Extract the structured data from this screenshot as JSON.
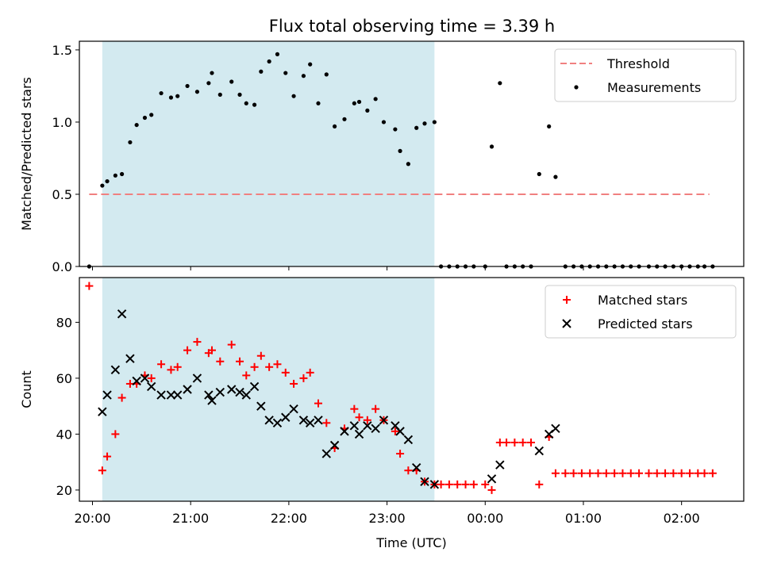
{
  "figure": {
    "title": "Flux total observing time = 3.39 h"
  },
  "chart_data": [
    {
      "type": "scatter",
      "panel": "top",
      "title": "Flux total observing time = 3.39 h",
      "xlabel": "",
      "ylabel": "Matched/Predicted stars",
      "xlim": [
        "19:52",
        "02:38"
      ],
      "ylim": [
        0.0,
        1.56
      ],
      "yticks": [
        0.0,
        0.5,
        1.0,
        1.5
      ],
      "ytick_labels": [
        "0.0",
        "0.5",
        "1.0",
        "1.5"
      ],
      "xticks": [
        "20:00",
        "21:00",
        "22:00",
        "23:00",
        "00:00",
        "01:00",
        "02:00"
      ],
      "shaded_span": [
        "20:06",
        "23:29"
      ],
      "shade_color": "#d3eaf0",
      "legend": {
        "position": "top-right",
        "entries": [
          "Threshold",
          "Measurements"
        ]
      },
      "threshold": {
        "name": "Threshold",
        "value": 0.5,
        "x_range": [
          "19:58",
          "02:17"
        ],
        "color": "#f08080",
        "style": "dashed"
      },
      "series": [
        {
          "name": "Measurements",
          "marker": "dot",
          "color": "#000000",
          "points": [
            [
              "19:58",
              0.0
            ],
            [
              "20:06",
              0.56
            ],
            [
              "20:09",
              0.59
            ],
            [
              "20:14",
              0.63
            ],
            [
              "20:18",
              0.64
            ],
            [
              "20:23",
              0.86
            ],
            [
              "20:27",
              0.98
            ],
            [
              "20:32",
              1.03
            ],
            [
              "20:36",
              1.05
            ],
            [
              "20:42",
              1.2
            ],
            [
              "20:48",
              1.17
            ],
            [
              "20:52",
              1.18
            ],
            [
              "20:58",
              1.25
            ],
            [
              "21:04",
              1.21
            ],
            [
              "21:11",
              1.27
            ],
            [
              "21:13",
              1.34
            ],
            [
              "21:18",
              1.19
            ],
            [
              "21:25",
              1.28
            ],
            [
              "21:30",
              1.19
            ],
            [
              "21:34",
              1.13
            ],
            [
              "21:39",
              1.12
            ],
            [
              "21:43",
              1.35
            ],
            [
              "21:48",
              1.42
            ],
            [
              "21:53",
              1.47
            ],
            [
              "21:58",
              1.34
            ],
            [
              "22:03",
              1.18
            ],
            [
              "22:09",
              1.32
            ],
            [
              "22:13",
              1.4
            ],
            [
              "22:18",
              1.13
            ],
            [
              "22:23",
              1.33
            ],
            [
              "22:28",
              0.97
            ],
            [
              "22:34",
              1.02
            ],
            [
              "22:40",
              1.13
            ],
            [
              "22:43",
              1.14
            ],
            [
              "22:48",
              1.08
            ],
            [
              "22:53",
              1.16
            ],
            [
              "22:58",
              1.0
            ],
            [
              "23:05",
              0.95
            ],
            [
              "23:08",
              0.8
            ],
            [
              "23:13",
              0.71
            ],
            [
              "23:18",
              0.96
            ],
            [
              "23:23",
              0.99
            ],
            [
              "23:29",
              1.0
            ],
            [
              "23:33",
              0.0
            ],
            [
              "23:38",
              0.0
            ],
            [
              "23:43",
              0.0
            ],
            [
              "23:48",
              0.0
            ],
            [
              "23:53",
              0.0
            ],
            [
              "00:00",
              0.0
            ],
            [
              "00:04",
              0.83
            ],
            [
              "00:09",
              1.27
            ],
            [
              "00:13",
              0.0
            ],
            [
              "00:18",
              0.0
            ],
            [
              "00:23",
              0.0
            ],
            [
              "00:28",
              0.0
            ],
            [
              "00:33",
              0.64
            ],
            [
              "00:39",
              0.97
            ],
            [
              "00:43",
              0.62
            ],
            [
              "00:49",
              0.0
            ],
            [
              "00:54",
              0.0
            ],
            [
              "00:59",
              0.0
            ],
            [
              "01:04",
              0.0
            ],
            [
              "01:09",
              0.0
            ],
            [
              "01:14",
              0.0
            ],
            [
              "01:19",
              0.0
            ],
            [
              "01:24",
              0.0
            ],
            [
              "01:29",
              0.0
            ],
            [
              "01:34",
              0.0
            ],
            [
              "01:40",
              0.0
            ],
            [
              "01:45",
              0.0
            ],
            [
              "01:50",
              0.0
            ],
            [
              "01:55",
              0.0
            ],
            [
              "02:00",
              0.0
            ],
            [
              "02:05",
              0.0
            ],
            [
              "02:10",
              0.0
            ],
            [
              "02:14",
              0.0
            ],
            [
              "02:19",
              0.0
            ]
          ]
        }
      ]
    },
    {
      "type": "scatter",
      "panel": "bottom",
      "title": "",
      "xlabel": "Time (UTC)",
      "ylabel": "Count",
      "xlim": [
        "19:52",
        "02:38"
      ],
      "ylim": [
        16,
        96
      ],
      "yticks": [
        20,
        40,
        60,
        80
      ],
      "xticks": [
        "20:00",
        "21:00",
        "22:00",
        "23:00",
        "00:00",
        "01:00",
        "02:00"
      ],
      "shaded_span": [
        "20:06",
        "23:29"
      ],
      "shade_color": "#d3eaf0",
      "legend": {
        "position": "top-right",
        "entries": [
          "Matched stars",
          "Predicted stars"
        ]
      },
      "series": [
        {
          "name": "Matched stars",
          "marker": "plus",
          "color": "#ff0000",
          "points": [
            [
              "19:58",
              93
            ],
            [
              "20:06",
              27
            ],
            [
              "20:09",
              32
            ],
            [
              "20:14",
              40
            ],
            [
              "20:18",
              53
            ],
            [
              "20:23",
              58
            ],
            [
              "20:27",
              58
            ],
            [
              "20:32",
              61
            ],
            [
              "20:36",
              60
            ],
            [
              "20:42",
              65
            ],
            [
              "20:48",
              63
            ],
            [
              "20:52",
              64
            ],
            [
              "20:58",
              70
            ],
            [
              "21:04",
              73
            ],
            [
              "21:11",
              69
            ],
            [
              "21:13",
              70
            ],
            [
              "21:18",
              66
            ],
            [
              "21:25",
              72
            ],
            [
              "21:30",
              66
            ],
            [
              "21:34",
              61
            ],
            [
              "21:39",
              64
            ],
            [
              "21:43",
              68
            ],
            [
              "21:48",
              64
            ],
            [
              "21:53",
              65
            ],
            [
              "21:58",
              62
            ],
            [
              "22:03",
              58
            ],
            [
              "22:09",
              60
            ],
            [
              "22:13",
              62
            ],
            [
              "22:18",
              51
            ],
            [
              "22:23",
              44
            ],
            [
              "22:28",
              35
            ],
            [
              "22:34",
              42
            ],
            [
              "22:40",
              49
            ],
            [
              "22:43",
              46
            ],
            [
              "22:48",
              45
            ],
            [
              "22:53",
              49
            ],
            [
              "22:58",
              45
            ],
            [
              "23:05",
              41
            ],
            [
              "23:08",
              33
            ],
            [
              "23:13",
              27
            ],
            [
              "23:18",
              27
            ],
            [
              "23:23",
              23
            ],
            [
              "23:29",
              22
            ],
            [
              "23:33",
              22
            ],
            [
              "23:38",
              22
            ],
            [
              "23:43",
              22
            ],
            [
              "23:48",
              22
            ],
            [
              "23:53",
              22
            ],
            [
              "00:00",
              22
            ],
            [
              "00:04",
              20
            ],
            [
              "00:09",
              37
            ],
            [
              "00:13",
              37
            ],
            [
              "00:18",
              37
            ],
            [
              "00:23",
              37
            ],
            [
              "00:28",
              37
            ],
            [
              "00:33",
              22
            ],
            [
              "00:39",
              39
            ],
            [
              "00:43",
              26
            ],
            [
              "00:49",
              26
            ],
            [
              "00:54",
              26
            ],
            [
              "00:59",
              26
            ],
            [
              "01:04",
              26
            ],
            [
              "01:09",
              26
            ],
            [
              "01:14",
              26
            ],
            [
              "01:19",
              26
            ],
            [
              "01:24",
              26
            ],
            [
              "01:29",
              26
            ],
            [
              "01:34",
              26
            ],
            [
              "01:40",
              26
            ],
            [
              "01:45",
              26
            ],
            [
              "01:50",
              26
            ],
            [
              "01:55",
              26
            ],
            [
              "02:00",
              26
            ],
            [
              "02:05",
              26
            ],
            [
              "02:10",
              26
            ],
            [
              "02:14",
              26
            ],
            [
              "02:19",
              26
            ]
          ]
        },
        {
          "name": "Predicted stars",
          "marker": "x",
          "color": "#000000",
          "points": [
            [
              "20:06",
              48
            ],
            [
              "20:09",
              54
            ],
            [
              "20:14",
              63
            ],
            [
              "20:18",
              83
            ],
            [
              "20:23",
              67
            ],
            [
              "20:27",
              59
            ],
            [
              "20:32",
              60
            ],
            [
              "20:36",
              57
            ],
            [
              "20:42",
              54
            ],
            [
              "20:48",
              54
            ],
            [
              "20:52",
              54
            ],
            [
              "20:58",
              56
            ],
            [
              "21:04",
              60
            ],
            [
              "21:11",
              54
            ],
            [
              "21:13",
              52
            ],
            [
              "21:18",
              55
            ],
            [
              "21:25",
              56
            ],
            [
              "21:30",
              55
            ],
            [
              "21:34",
              54
            ],
            [
              "21:39",
              57
            ],
            [
              "21:43",
              50
            ],
            [
              "21:48",
              45
            ],
            [
              "21:53",
              44
            ],
            [
              "21:58",
              46
            ],
            [
              "22:03",
              49
            ],
            [
              "22:09",
              45
            ],
            [
              "22:13",
              44
            ],
            [
              "22:18",
              45
            ],
            [
              "22:23",
              33
            ],
            [
              "22:28",
              36
            ],
            [
              "22:34",
              41
            ],
            [
              "22:40",
              43
            ],
            [
              "22:43",
              40
            ],
            [
              "22:48",
              43
            ],
            [
              "22:53",
              42
            ],
            [
              "22:58",
              45
            ],
            [
              "23:05",
              43
            ],
            [
              "23:08",
              41
            ],
            [
              "23:13",
              38
            ],
            [
              "23:18",
              28
            ],
            [
              "23:23",
              23
            ],
            [
              "23:29",
              22
            ],
            [
              "00:04",
              24
            ],
            [
              "00:09",
              29
            ],
            [
              "00:33",
              34
            ],
            [
              "00:39",
              40
            ],
            [
              "00:43",
              42
            ]
          ]
        }
      ]
    }
  ]
}
